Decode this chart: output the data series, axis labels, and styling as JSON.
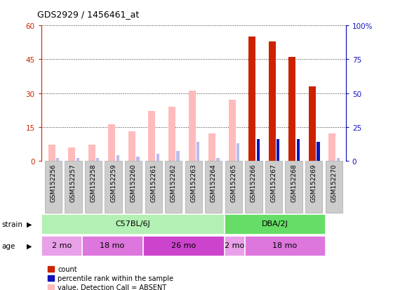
{
  "title": "GDS2929 / 1456461_at",
  "samples": [
    "GSM152256",
    "GSM152257",
    "GSM152258",
    "GSM152259",
    "GSM152260",
    "GSM152261",
    "GSM152262",
    "GSM152263",
    "GSM152264",
    "GSM152265",
    "GSM152266",
    "GSM152267",
    "GSM152268",
    "GSM152269",
    "GSM152270"
  ],
  "count_values": [
    0,
    0,
    0,
    0,
    0,
    0,
    0,
    0,
    0,
    0,
    55,
    53,
    46,
    33,
    0
  ],
  "rank_values": [
    0,
    0,
    0,
    0,
    0,
    0,
    0,
    0,
    0,
    0,
    16,
    16,
    16,
    14,
    0
  ],
  "absent_value": [
    7,
    6,
    7,
    16,
    13,
    22,
    24,
    31,
    12,
    27,
    0,
    0,
    0,
    0,
    12
  ],
  "absent_rank": [
    2,
    2,
    2,
    4,
    3,
    5,
    7,
    14,
    2,
    13,
    0,
    0,
    0,
    0,
    2
  ],
  "is_absent": [
    true,
    true,
    true,
    true,
    true,
    true,
    true,
    true,
    true,
    true,
    false,
    false,
    false,
    false,
    true
  ],
  "ylim_left": [
    0,
    60
  ],
  "ylim_right": [
    0,
    100
  ],
  "yticks_left": [
    0,
    15,
    30,
    45,
    60
  ],
  "yticks_right": [
    0,
    25,
    50,
    75,
    100
  ],
  "strain_groups": [
    {
      "label": "C57BL/6J",
      "start": 0,
      "end": 9,
      "color": "#b3f0b3"
    },
    {
      "label": "DBA/2J",
      "start": 9,
      "end": 14,
      "color": "#66dd66"
    }
  ],
  "age_groups": [
    {
      "label": "2 mo",
      "start": 0,
      "end": 2,
      "color": "#e8a0e8"
    },
    {
      "label": "18 mo",
      "start": 2,
      "end": 5,
      "color": "#dd77dd"
    },
    {
      "label": "26 mo",
      "start": 5,
      "end": 9,
      "color": "#cc44cc"
    },
    {
      "label": "2 mo",
      "start": 9,
      "end": 10,
      "color": "#e8a0e8"
    },
    {
      "label": "18 mo",
      "start": 10,
      "end": 14,
      "color": "#dd77dd"
    }
  ],
  "count_color": "#cc2200",
  "rank_color": "#1111bb",
  "absent_value_color": "#ffbbbb",
  "absent_rank_color": "#bbbbee",
  "bg_color": "#ffffff",
  "plot_bg": "#ffffff",
  "grid_color": "#333333",
  "left_axis_color": "#cc2200",
  "right_axis_color": "#1111bb",
  "sample_box_color": "#cccccc",
  "sample_box_edge": "#999999"
}
